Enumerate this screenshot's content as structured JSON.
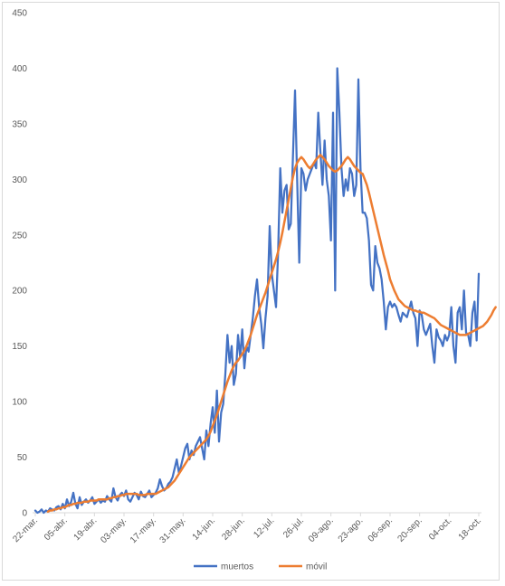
{
  "chart_data": {
    "type": "line",
    "title": "",
    "xlabel": "",
    "ylabel": "",
    "ylim": [
      0,
      450
    ],
    "yticks": [
      0,
      50,
      100,
      150,
      200,
      250,
      300,
      350,
      400,
      450
    ],
    "grid": false,
    "legend_position": "bottom",
    "x_start": "22-mar.",
    "x_end": "26-oct.",
    "x_tick_labels": [
      "22-mar.",
      "05-abr.",
      "19-abr.",
      "03-may.",
      "17-may.",
      "31-may.",
      "14-jun.",
      "28-jun.",
      "12-jul.",
      "26-jul.",
      "09-ago.",
      "23-ago.",
      "06-sep.",
      "20-sep.",
      "04-oct.",
      "18-oct."
    ],
    "series": [
      {
        "name": "muertos",
        "color": "#4472C4",
        "values": [
          2,
          0,
          1,
          3,
          0,
          2,
          1,
          4,
          3,
          2,
          5,
          6,
          3,
          8,
          4,
          12,
          6,
          10,
          18,
          8,
          4,
          14,
          7,
          10,
          12,
          9,
          11,
          14,
          8,
          10,
          12,
          9,
          11,
          10,
          15,
          12,
          10,
          22,
          14,
          11,
          16,
          18,
          15,
          20,
          12,
          10,
          14,
          18,
          16,
          12,
          19,
          15,
          14,
          17,
          20,
          14,
          16,
          18,
          22,
          30,
          24,
          20,
          22,
          26,
          28,
          32,
          40,
          48,
          36,
          42,
          50,
          58,
          62,
          48,
          56,
          52,
          60,
          64,
          68,
          58,
          48,
          74,
          60,
          80,
          95,
          72,
          110,
          64,
          90,
          98,
          125,
          160,
          135,
          150,
          115,
          125,
          160,
          140,
          165,
          130,
          150,
          145,
          160,
          175,
          195,
          210,
          185,
          170,
          148,
          175,
          195,
          258,
          215,
          200,
          185,
          235,
          310,
          270,
          290,
          295,
          255,
          260,
          320,
          380,
          300,
          225,
          310,
          305,
          290,
          300,
          305,
          310,
          315,
          310,
          360,
          325,
          295,
          335,
          300,
          285,
          245,
          360,
          200,
          400,
          360,
          310,
          285,
          300,
          290,
          310,
          305,
          285,
          295,
          390,
          310,
          270,
          270,
          265,
          245,
          205,
          200,
          240,
          225,
          220,
          210,
          190,
          165,
          185,
          190,
          185,
          188,
          185,
          178,
          172,
          180,
          178,
          176,
          183,
          190,
          180,
          175,
          150,
          182,
          178,
          165,
          160,
          165,
          170,
          150,
          135,
          165,
          158,
          155,
          150,
          160,
          155,
          160,
          185,
          150,
          135,
          180,
          185,
          165,
          200,
          162,
          160,
          150,
          180,
          190,
          155,
          215
        ]
      },
      {
        "name": "móvil",
        "color": "#ED7D31",
        "values": [
          null,
          null,
          null,
          null,
          null,
          null,
          1,
          2,
          2,
          3,
          3,
          4,
          4,
          5,
          5,
          6,
          7,
          7,
          8,
          8,
          9,
          9,
          9,
          10,
          10,
          10,
          11,
          11,
          11,
          11,
          12,
          12,
          12,
          12,
          12,
          13,
          13,
          14,
          14,
          15,
          15,
          16,
          16,
          17,
          17,
          17,
          17,
          17,
          17,
          16,
          16,
          16,
          16,
          17,
          17,
          17,
          17,
          17,
          18,
          19,
          20,
          21,
          22,
          23,
          25,
          27,
          29,
          32,
          35,
          38,
          41,
          44,
          47,
          50,
          52,
          54,
          56,
          58,
          60,
          62,
          64,
          66,
          69,
          73,
          78,
          83,
          88,
          94,
          100,
          106,
          112,
          118,
          123,
          128,
          132,
          135,
          137,
          140,
          143,
          146,
          150,
          155,
          160,
          166,
          172,
          178,
          183,
          188,
          193,
          198,
          204,
          210,
          216,
          222,
          228,
          235,
          243,
          252,
          262,
          272,
          282,
          292,
          302,
          310,
          315,
          318,
          320,
          318,
          315,
          312,
          310,
          312,
          315,
          318,
          320,
          322,
          320,
          318,
          315,
          312,
          310,
          308,
          307,
          308,
          310,
          312,
          315,
          318,
          320,
          318,
          315,
          312,
          310,
          308,
          306,
          305,
          300,
          295,
          288,
          280,
          272,
          264,
          256,
          248,
          240,
          232,
          225,
          218,
          210,
          205,
          200,
          196,
          192,
          190,
          188,
          186,
          185,
          184,
          183,
          182,
          182,
          181,
          181,
          180,
          180,
          179,
          178,
          177,
          176,
          175,
          173,
          171,
          169,
          168,
          167,
          166,
          165,
          164,
          163,
          162,
          161,
          160,
          160,
          160,
          160,
          161,
          162,
          163,
          164,
          165,
          166,
          167,
          168,
          170,
          172,
          175,
          178,
          182,
          185
        ]
      }
    ]
  }
}
